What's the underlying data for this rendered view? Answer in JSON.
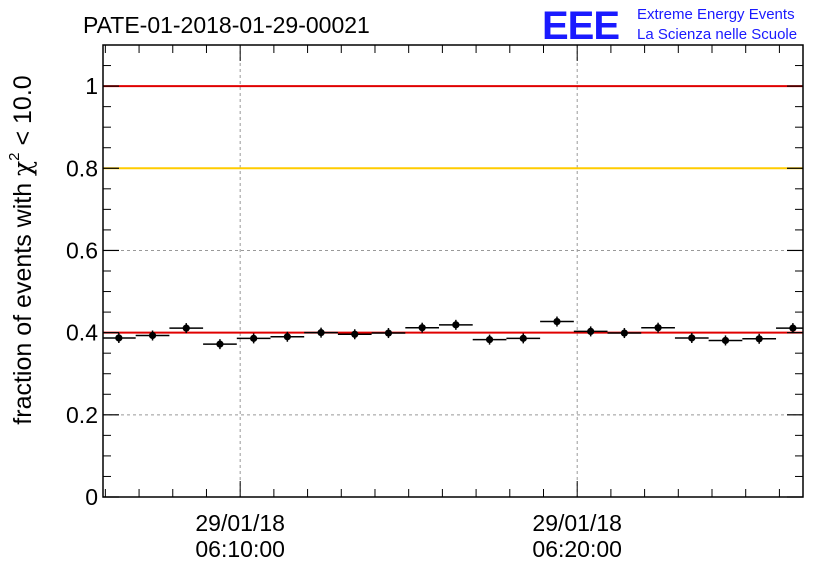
{
  "logo": {
    "letters": "EEE",
    "line1": "Extreme Energy Events",
    "line2": "La Scienza nelle Scuole",
    "color": "#1a1aff"
  },
  "chart_data": {
    "type": "scatter",
    "title": "PATE-01-2018-01-29-00021",
    "ylabel": "fraction of events with χ² < 10.0",
    "ylabel_parts": {
      "prefix": "fraction of events with ",
      "chi": "χ",
      "sup": "2",
      "suffix": " < 10.0"
    },
    "xlabel": "",
    "ylim": [
      0,
      1.1
    ],
    "y_ticks": [
      0,
      0.2,
      0.4,
      0.6,
      0.8,
      1
    ],
    "y_tick_labels": [
      "0",
      "0.2",
      "0.4",
      "0.6",
      "0.8",
      "1"
    ],
    "x_unit": "minutes after 06:00:00",
    "xlim": [
      5.93,
      26.7
    ],
    "x_major_ticks": [
      {
        "x": 10,
        "date": "29/01/18",
        "time": "06:10:00"
      },
      {
        "x": 20,
        "date": "29/01/18",
        "time": "06:20:00"
      }
    ],
    "x_minor_step": 1,
    "bin_width": 1,
    "points": [
      {
        "x": 6.4,
        "y": 0.387
      },
      {
        "x": 7.4,
        "y": 0.393
      },
      {
        "x": 8.4,
        "y": 0.411
      },
      {
        "x": 9.4,
        "y": 0.372
      },
      {
        "x": 10.4,
        "y": 0.386
      },
      {
        "x": 11.4,
        "y": 0.39
      },
      {
        "x": 12.4,
        "y": 0.4
      },
      {
        "x": 13.4,
        "y": 0.396
      },
      {
        "x": 14.4,
        "y": 0.399
      },
      {
        "x": 15.4,
        "y": 0.412
      },
      {
        "x": 16.4,
        "y": 0.419
      },
      {
        "x": 17.4,
        "y": 0.383
      },
      {
        "x": 18.4,
        "y": 0.386
      },
      {
        "x": 19.4,
        "y": 0.427
      },
      {
        "x": 20.4,
        "y": 0.403
      },
      {
        "x": 21.4,
        "y": 0.399
      },
      {
        "x": 22.4,
        "y": 0.412
      },
      {
        "x": 23.4,
        "y": 0.387
      },
      {
        "x": 24.4,
        "y": 0.381
      },
      {
        "x": 25.4,
        "y": 0.385
      },
      {
        "x": 26.4,
        "y": 0.411
      }
    ],
    "reference_lines": [
      {
        "name": "max-line",
        "y": 1.0,
        "color": "#e00000"
      },
      {
        "name": "threshold-line",
        "y": 0.8,
        "color": "#ffcc00"
      },
      {
        "name": "mean-line",
        "y": 0.4,
        "color": "#e00000"
      }
    ],
    "grid": true
  }
}
